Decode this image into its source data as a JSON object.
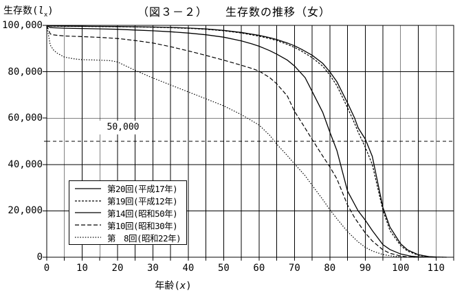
{
  "header": {
    "figure_no": "（図３－２）",
    "title": "生存数の推移（女）"
  },
  "y_axis": {
    "title_text": "生存数",
    "paren_open": "(",
    "title_symbol": "l",
    "title_symbol_sub": "x",
    "paren_close": ")",
    "tick_labels": [
      "100,000",
      "80,000",
      "60,000",
      "40,000",
      "20,000",
      "0"
    ],
    "tick_values": [
      100000,
      80000,
      60000,
      40000,
      20000,
      0
    ]
  },
  "x_axis": {
    "title_text": "年齢",
    "paren_open": "(",
    "title_symbol": "x",
    "paren_close": ")",
    "tick_labels": [
      "0",
      "10",
      "20",
      "30",
      "40",
      "50",
      "60",
      "70",
      "80",
      "90",
      "100",
      "110"
    ],
    "tick_values": [
      0,
      10,
      20,
      30,
      40,
      50,
      60,
      70,
      80,
      90,
      100,
      110
    ]
  },
  "reference_line": {
    "value": 50000,
    "label": "50,000"
  },
  "legend": {
    "entries": [
      {
        "label": "第20回(平成17年)",
        "style": "solid"
      },
      {
        "label": "第19回(平成12年)",
        "style": "dash-dense"
      },
      {
        "label": "第14回(昭和50年)",
        "style": "solid"
      },
      {
        "label": "第10回(昭和30年)",
        "style": "dash"
      },
      {
        "label": "第　8回(昭和22年)",
        "style": "dot"
      }
    ]
  },
  "chart_data": {
    "type": "line",
    "title": "（図３－２） 生存数の推移（女）",
    "xlabel": "年齢(x)",
    "ylabel": "生存数(lx)",
    "xlim": [
      0,
      115
    ],
    "ylim": [
      0,
      100000
    ],
    "x_grid_step": 5,
    "y_grid_step": 20000,
    "x_tick_step": 5,
    "grid": true,
    "legend_position": "lower-left",
    "reference_line_y": 50000,
    "series": [
      {
        "name": "第20回(平成17年)",
        "style": "solid",
        "points": [
          [
            0,
            100000
          ],
          [
            1,
            99720
          ],
          [
            5,
            99660
          ],
          [
            10,
            99610
          ],
          [
            15,
            99560
          ],
          [
            20,
            99490
          ],
          [
            25,
            99400
          ],
          [
            30,
            99280
          ],
          [
            35,
            99100
          ],
          [
            40,
            98850
          ],
          [
            45,
            98450
          ],
          [
            50,
            97850
          ],
          [
            55,
            96950
          ],
          [
            60,
            95700
          ],
          [
            63,
            94700
          ],
          [
            65,
            93900
          ],
          [
            68,
            92400
          ],
          [
            70,
            91200
          ],
          [
            72,
            89700
          ],
          [
            75,
            87100
          ],
          [
            78,
            83600
          ],
          [
            80,
            80000
          ],
          [
            82,
            75700
          ],
          [
            85,
            66500
          ],
          [
            87,
            60000
          ],
          [
            88,
            55800
          ],
          [
            90,
            51000
          ],
          [
            92,
            43500
          ],
          [
            95,
            21500
          ],
          [
            97,
            13000
          ],
          [
            100,
            5800
          ],
          [
            102,
            3100
          ],
          [
            105,
            1100
          ],
          [
            108,
            280
          ],
          [
            110,
            90
          ],
          [
            113,
            0
          ]
        ]
      },
      {
        "name": "第19回(平成12年)",
        "style": "dash-dense",
        "points": [
          [
            0,
            100000
          ],
          [
            1,
            99680
          ],
          [
            5,
            99600
          ],
          [
            10,
            99550
          ],
          [
            15,
            99490
          ],
          [
            20,
            99420
          ],
          [
            25,
            99320
          ],
          [
            30,
            99190
          ],
          [
            35,
            98990
          ],
          [
            40,
            98720
          ],
          [
            45,
            98300
          ],
          [
            50,
            97670
          ],
          [
            55,
            96720
          ],
          [
            60,
            95350
          ],
          [
            63,
            94300
          ],
          [
            65,
            93450
          ],
          [
            68,
            91800
          ],
          [
            70,
            90500
          ],
          [
            72,
            88900
          ],
          [
            75,
            86100
          ],
          [
            78,
            82400
          ],
          [
            80,
            78600
          ],
          [
            82,
            74000
          ],
          [
            85,
            64500
          ],
          [
            87,
            57700
          ],
          [
            88,
            54000
          ],
          [
            90,
            47500
          ],
          [
            92,
            40000
          ],
          [
            95,
            20300
          ],
          [
            97,
            11500
          ],
          [
            100,
            5000
          ],
          [
            102,
            2600
          ],
          [
            105,
            850
          ],
          [
            108,
            200
          ],
          [
            110,
            60
          ],
          [
            112,
            0
          ]
        ]
      },
      {
        "name": "第14回(昭和50年)",
        "style": "solid",
        "points": [
          [
            0,
            100000
          ],
          [
            1,
            99050
          ],
          [
            2,
            98950
          ],
          [
            5,
            98800
          ],
          [
            10,
            98650
          ],
          [
            15,
            98500
          ],
          [
            20,
            98300
          ],
          [
            25,
            98000
          ],
          [
            30,
            97650
          ],
          [
            35,
            97250
          ],
          [
            40,
            96700
          ],
          [
            45,
            95950
          ],
          [
            50,
            94900
          ],
          [
            55,
            93300
          ],
          [
            58,
            92000
          ],
          [
            60,
            91000
          ],
          [
            63,
            89100
          ],
          [
            65,
            87600
          ],
          [
            68,
            85000
          ],
          [
            70,
            82500
          ],
          [
            73,
            77500
          ],
          [
            75,
            71500
          ],
          [
            78,
            62500
          ],
          [
            80,
            54000
          ],
          [
            82,
            46000
          ],
          [
            85,
            28500
          ],
          [
            88,
            20000
          ],
          [
            90,
            16000
          ],
          [
            92,
            11500
          ],
          [
            95,
            5400
          ],
          [
            97,
            3300
          ],
          [
            100,
            1400
          ],
          [
            103,
            450
          ],
          [
            105,
            170
          ],
          [
            108,
            20
          ],
          [
            110,
            0
          ]
        ]
      },
      {
        "name": "第10回(昭和30年)",
        "style": "dash",
        "points": [
          [
            0,
            100000
          ],
          [
            1,
            96300
          ],
          [
            2,
            95900
          ],
          [
            3,
            95700
          ],
          [
            5,
            95450
          ],
          [
            10,
            95150
          ],
          [
            15,
            94820
          ],
          [
            20,
            94350
          ],
          [
            25,
            93450
          ],
          [
            30,
            92400
          ],
          [
            35,
            90800
          ],
          [
            40,
            89000
          ],
          [
            45,
            87050
          ],
          [
            50,
            85000
          ],
          [
            55,
            82800
          ],
          [
            58,
            81400
          ],
          [
            60,
            80300
          ],
          [
            63,
            77500
          ],
          [
            65,
            74800
          ],
          [
            68,
            69500
          ],
          [
            70,
            63000
          ],
          [
            72,
            58200
          ],
          [
            75,
            50800
          ],
          [
            78,
            43600
          ],
          [
            80,
            39000
          ],
          [
            82,
            33800
          ],
          [
            85,
            22500
          ],
          [
            87,
            17000
          ],
          [
            90,
            10500
          ],
          [
            92,
            7000
          ],
          [
            95,
            3200
          ],
          [
            97,
            1700
          ],
          [
            100,
            520
          ],
          [
            102,
            150
          ],
          [
            104,
            0
          ]
        ]
      },
      {
        "name": "第８回(昭和22年)",
        "style": "dot",
        "points": [
          [
            0,
            100000
          ],
          [
            1,
            91500
          ],
          [
            2,
            89200
          ],
          [
            3,
            88000
          ],
          [
            5,
            86300
          ],
          [
            8,
            85500
          ],
          [
            10,
            85200
          ],
          [
            15,
            85000
          ],
          [
            18,
            84800
          ],
          [
            20,
            84200
          ],
          [
            25,
            80600
          ],
          [
            30,
            77300
          ],
          [
            35,
            74300
          ],
          [
            40,
            71300
          ],
          [
            45,
            68300
          ],
          [
            50,
            65300
          ],
          [
            55,
            61500
          ],
          [
            60,
            57000
          ],
          [
            63,
            52600
          ],
          [
            65,
            48800
          ],
          [
            68,
            43800
          ],
          [
            70,
            40300
          ],
          [
            73,
            35200
          ],
          [
            75,
            31000
          ],
          [
            78,
            24900
          ],
          [
            80,
            20500
          ],
          [
            82,
            16600
          ],
          [
            85,
            11000
          ],
          [
            88,
            6600
          ],
          [
            90,
            4300
          ],
          [
            92,
            2700
          ],
          [
            95,
            1150
          ],
          [
            98,
            400
          ],
          [
            100,
            150
          ],
          [
            102,
            30
          ],
          [
            104,
            0
          ]
        ]
      }
    ]
  }
}
